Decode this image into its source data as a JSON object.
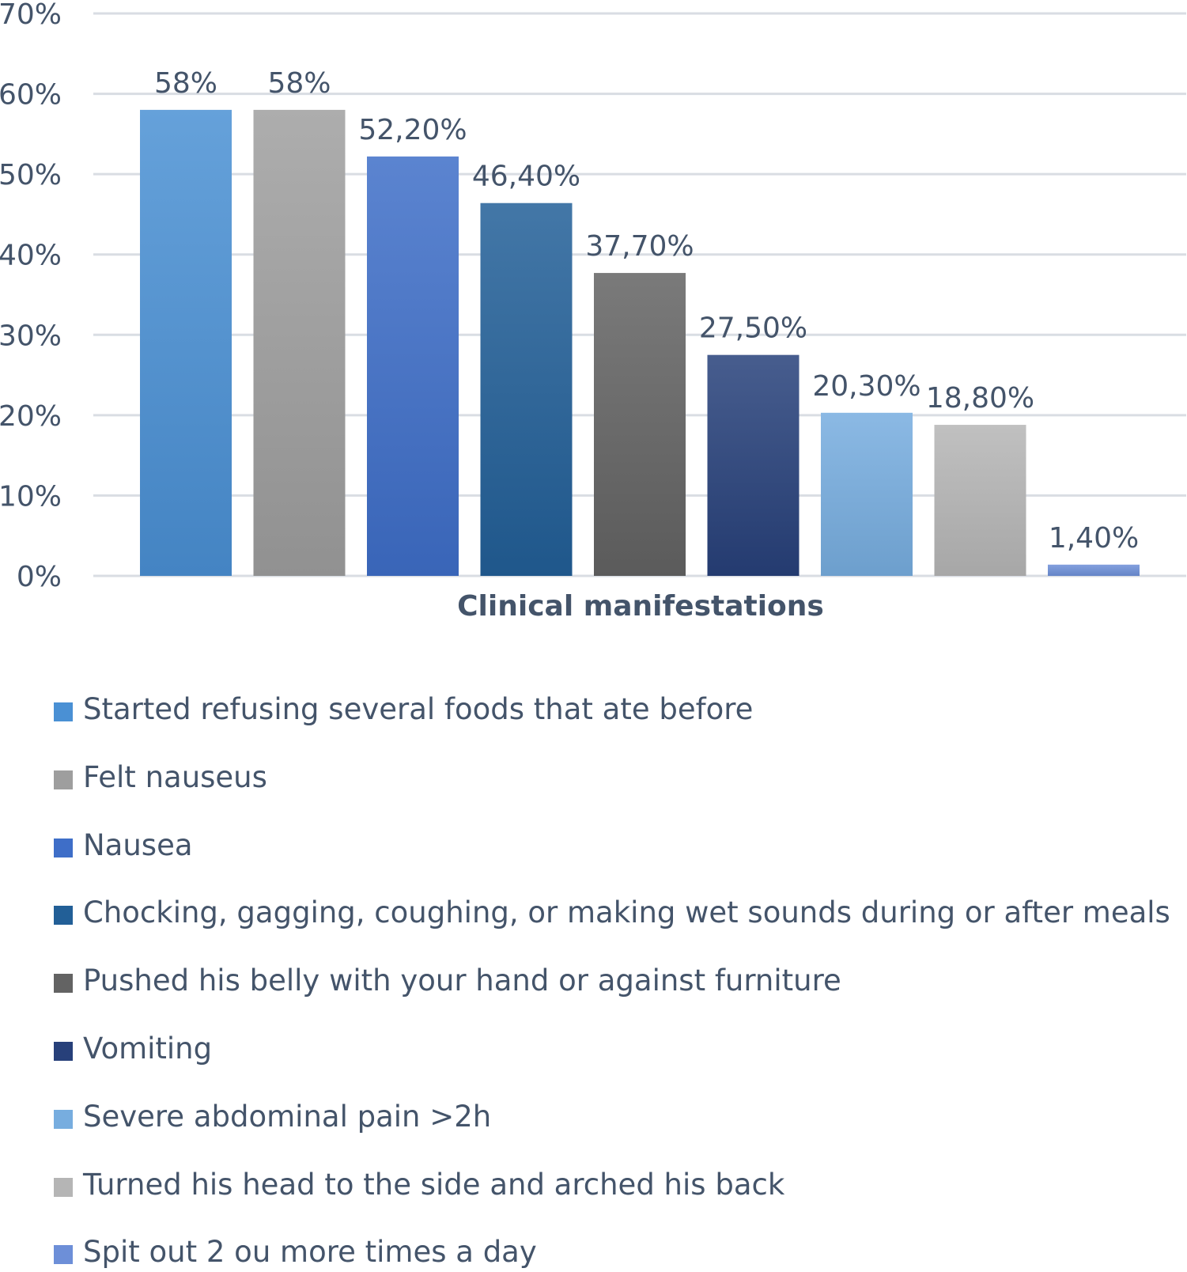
{
  "chart_data": {
    "type": "bar",
    "title": "",
    "xlabel": "Clinical manifestations",
    "ylabel": "",
    "ylim": [
      0,
      70
    ],
    "y_ticks": [
      "0%",
      "10%",
      "20%",
      "30%",
      "40%",
      "50%",
      "60%",
      "70%"
    ],
    "grid": true,
    "legend_position": "bottom",
    "series": [
      {
        "name": "Started refusing several foods that ate before",
        "value": 58,
        "label": "58%",
        "color": "#4a90d4"
      },
      {
        "name": "Felt nauseus",
        "value": 58,
        "label": "58%",
        "color": "#9e9e9e"
      },
      {
        "name": "Nausea",
        "value": 52.2,
        "label": "52,20%",
        "color": "#3e6ec8"
      },
      {
        "name": "Chocking, gagging,  coughing, or making wet sounds during or after meals",
        "value": 46.4,
        "label": "46,40%",
        "color": "#225f97"
      },
      {
        "name": "Pushed his belly with your hand or against furniture",
        "value": 37.7,
        "label": "37,70%",
        "color": "#636363"
      },
      {
        "name": "Vomiting",
        "value": 27.5,
        "label": "27,50%",
        "color": "#27407a"
      },
      {
        "name": "Severe abdominal pain >2h",
        "value": 20.3,
        "label": "20,30%",
        "color": "#77addf"
      },
      {
        "name": "Turned his head to the side and arched his back",
        "value": 18.8,
        "label": "18,80%",
        "color": "#b5b5b5"
      },
      {
        "name": "Spit out 2 ou more times a day",
        "value": 1.4,
        "label": "1,40%",
        "color": "#6d8fd8"
      }
    ]
  }
}
